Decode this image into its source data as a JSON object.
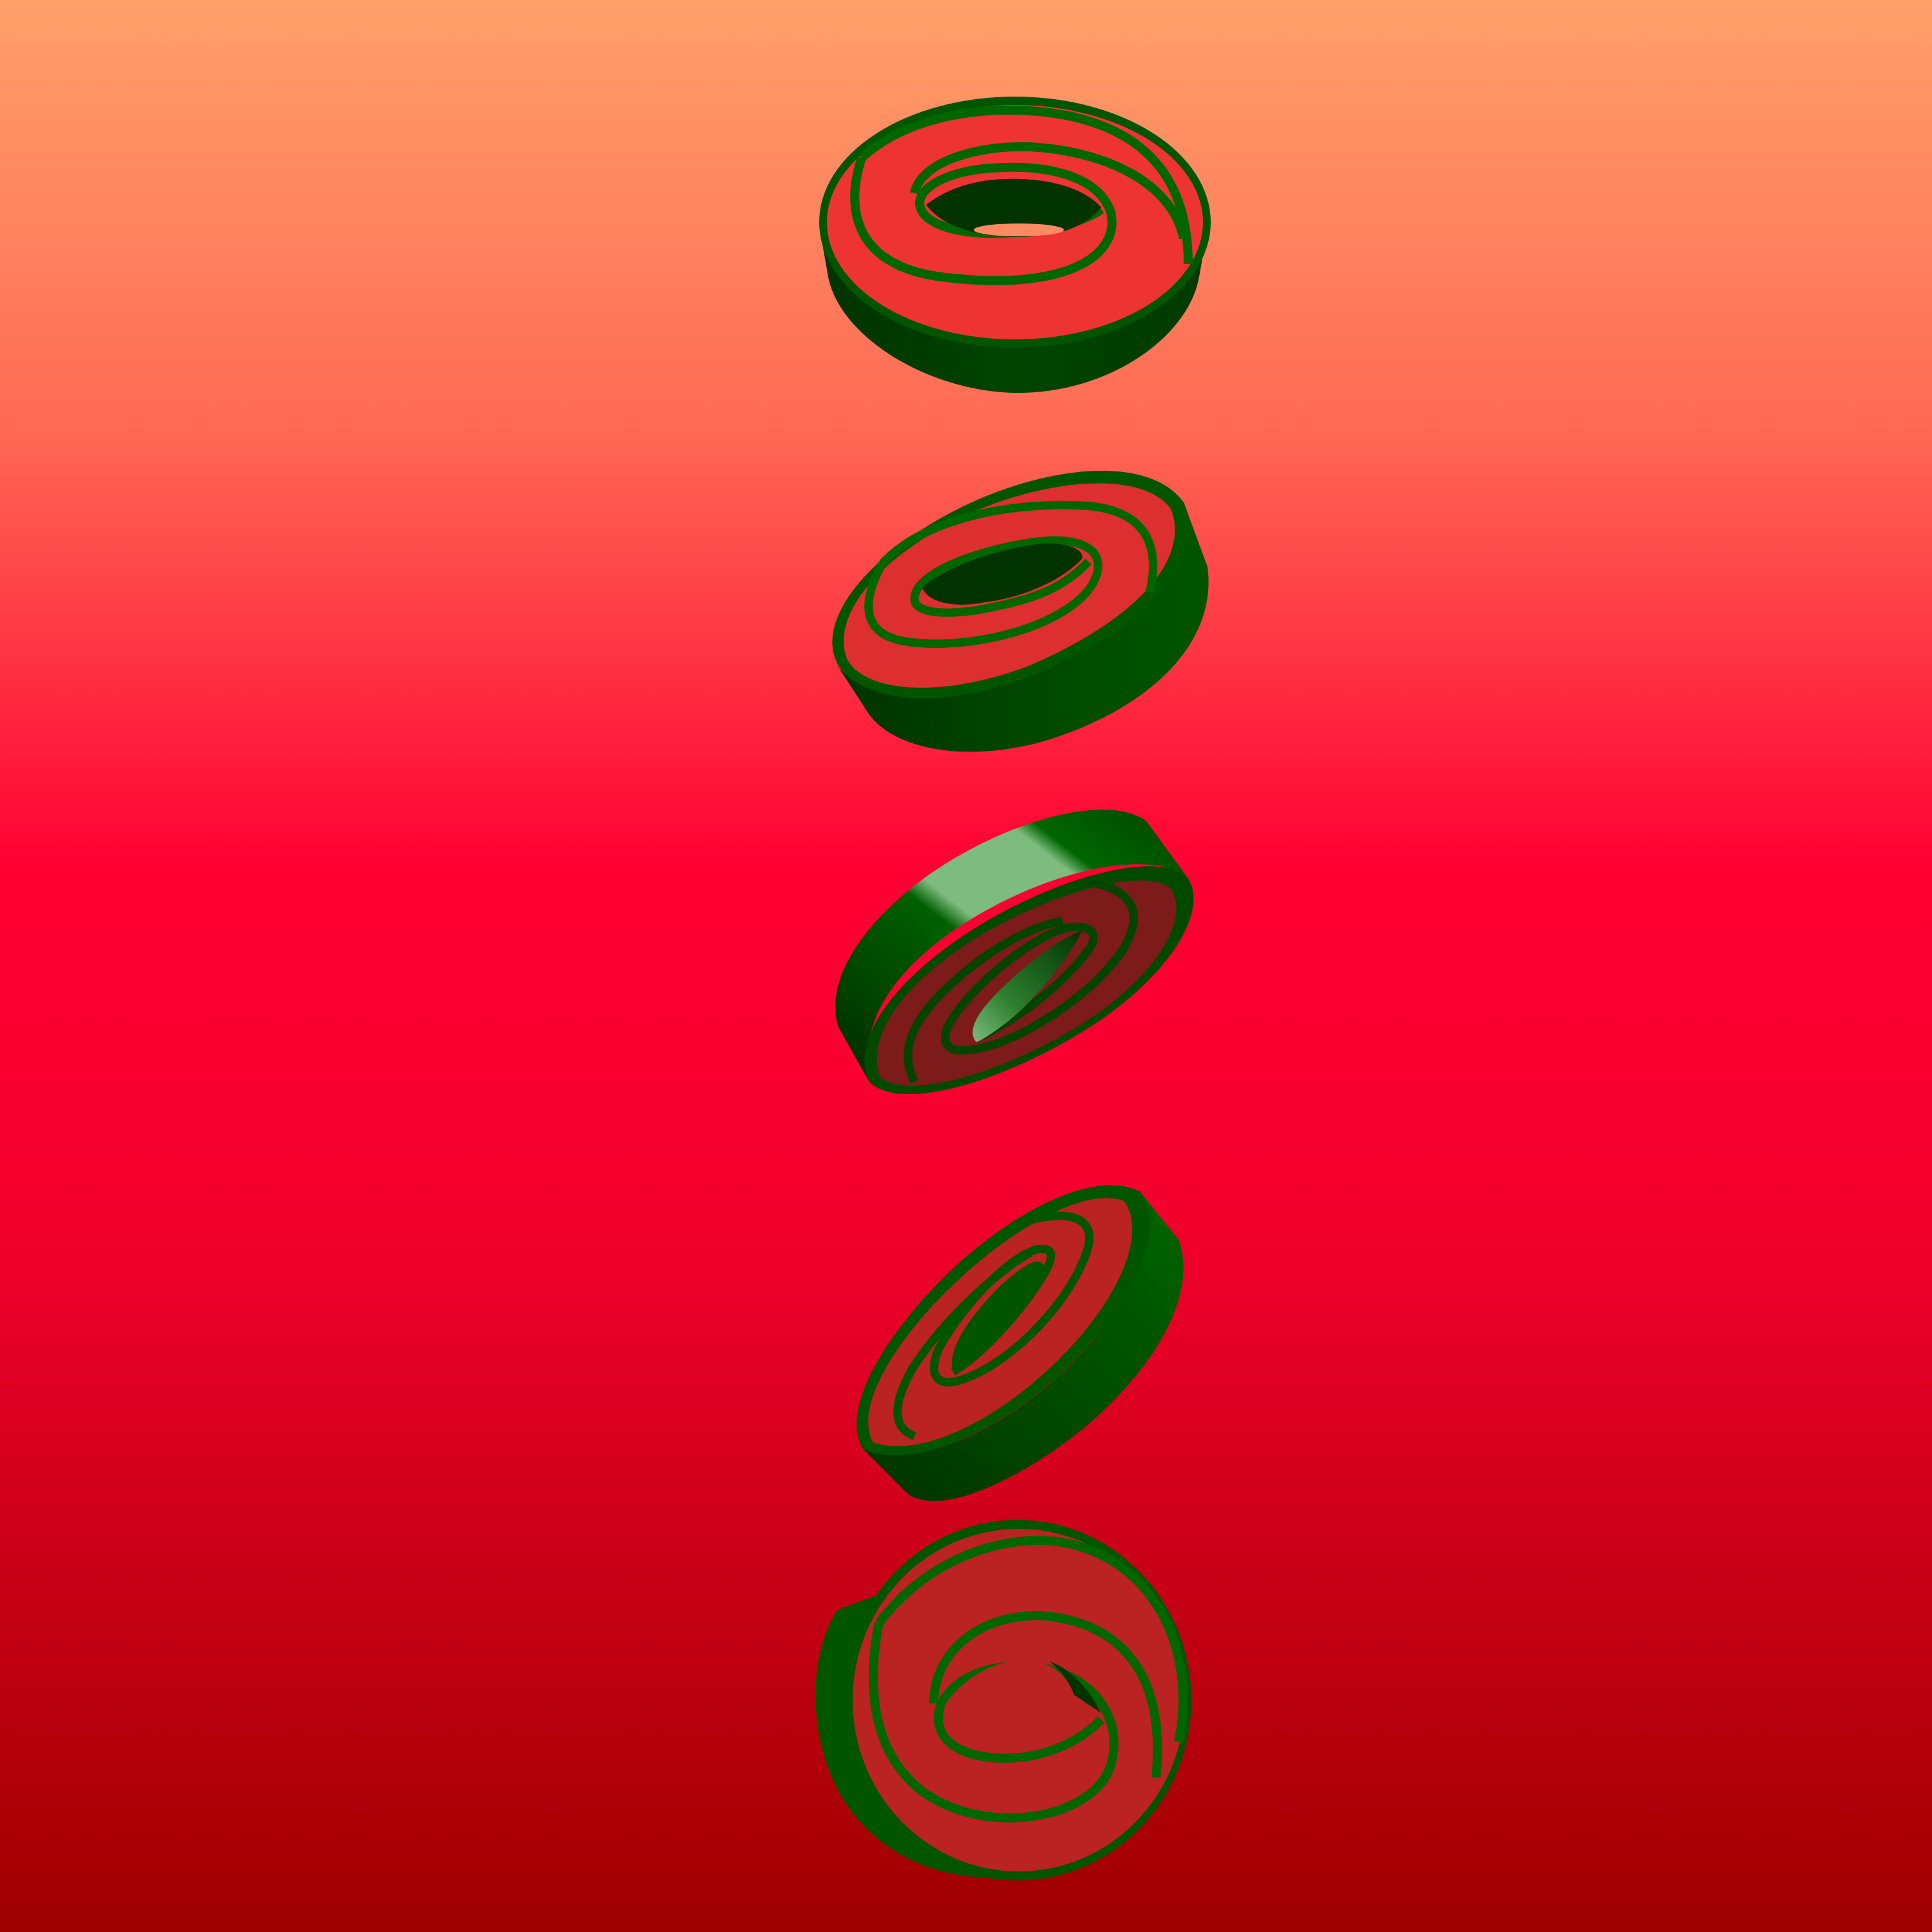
{
  "scene": {
    "background": {
      "top": "#ffa06a",
      "upper_mid": "#ff4a4c",
      "mid": "#ff0033",
      "bottom": "#9e0000"
    },
    "object_colors": {
      "green_light": "#7dbb7f",
      "green": "#006600",
      "green_mid": "#005500",
      "green_dark": "#003300",
      "red_face": "#ee3333",
      "red_face_dark": "#7d1a1a",
      "red_face_mid": "#bb2222"
    },
    "objects": [
      {
        "name": "ring-top-view",
        "face": "red_face"
      },
      {
        "name": "ring-tilted",
        "face": "red_face"
      },
      {
        "name": "ring-underside",
        "face": "red_face_dark"
      },
      {
        "name": "ring-angled",
        "face": "red_face_mid"
      },
      {
        "name": "ring-front-view",
        "face": "red_face_mid"
      }
    ]
  }
}
